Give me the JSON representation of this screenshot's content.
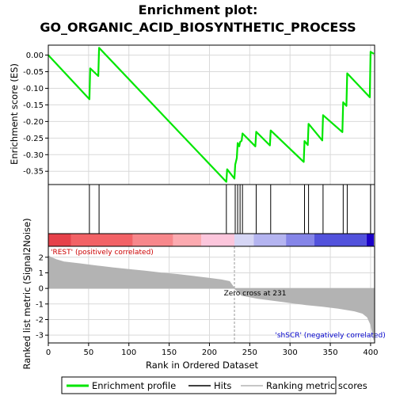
{
  "chart_data": {
    "type": "line",
    "title_line1": "Enrichment plot:",
    "title_line2": "GO_ORGANIC_ACID_BIOSYNTHETIC_PROCESS",
    "xlabel": "Rank in Ordered Dataset",
    "ylabel_top": "Enrichment score (ES)",
    "ylabel_bottom": "Ranked list metric (Signal2Noise)",
    "xlim": [
      0,
      405
    ],
    "ylim_es": [
      -0.39,
      0.03
    ],
    "ylim_metric": [
      -3.5,
      2.7
    ],
    "x_ticks": [
      0,
      50,
      100,
      150,
      200,
      250,
      300,
      350,
      400
    ],
    "es_ticks": [
      0.0,
      -0.05,
      -0.1,
      -0.15,
      -0.2,
      -0.25,
      -0.3,
      -0.35
    ],
    "es_tick_labels": [
      "0.00",
      "-0.05",
      "-0.10",
      "-0.15",
      "-0.20",
      "-0.25",
      "-0.30",
      "-0.35"
    ],
    "metric_ticks": [
      2,
      1,
      0,
      -1,
      -2,
      -3
    ],
    "es_profile": {
      "x": [
        0,
        51,
        52,
        62,
        63,
        221,
        222,
        231,
        232,
        234,
        235,
        237,
        238,
        240,
        241,
        257,
        258,
        275,
        276,
        317,
        318,
        322,
        323,
        340,
        341,
        365,
        366,
        370,
        371,
        399,
        400,
        404
      ],
      "y": [
        0.0,
        -0.133,
        -0.04,
        -0.063,
        0.022,
        -0.382,
        -0.344,
        -0.372,
        -0.33,
        -0.31,
        -0.265,
        -0.275,
        -0.262,
        -0.258,
        -0.236,
        -0.275,
        -0.231,
        -0.272,
        -0.227,
        -0.322,
        -0.259,
        -0.271,
        -0.207,
        -0.257,
        -0.181,
        -0.232,
        -0.142,
        -0.153,
        -0.055,
        -0.127,
        0.01,
        0.004
      ]
    },
    "hits": [
      51,
      63,
      221,
      232,
      235,
      238,
      241,
      258,
      276,
      318,
      323,
      341,
      366,
      371,
      400
    ],
    "metric_curve": {
      "x": [
        0,
        3,
        10,
        20,
        40,
        60,
        80,
        100,
        120,
        140,
        160,
        180,
        200,
        215,
        225,
        231,
        240,
        260,
        280,
        300,
        320,
        340,
        360,
        380,
        390,
        396,
        400,
        403,
        404
      ],
      "y": [
        2.1,
        2.0,
        1.85,
        1.7,
        1.58,
        1.45,
        1.33,
        1.22,
        1.12,
        1.0,
        0.9,
        0.78,
        0.65,
        0.55,
        0.45,
        0.0,
        -0.45,
        -0.65,
        -0.78,
        -0.92,
        -1.05,
        -1.15,
        -1.28,
        -1.45,
        -1.6,
        -1.85,
        -2.3,
        -3.0,
        -3.3
      ]
    },
    "zero_cross_rank": 231,
    "zero_cross_label": "Zero cross at 231",
    "pos_label": "'REST' (positively correlated)",
    "neg_label": "'shSCR' (negatively correlated)",
    "colorbar": [
      {
        "x0": 0,
        "x1": 28,
        "color": "#e6414a"
      },
      {
        "x0": 28,
        "x1": 105,
        "color": "#f26266"
      },
      {
        "x0": 105,
        "x1": 155,
        "color": "#f7878b"
      },
      {
        "x0": 155,
        "x1": 190,
        "color": "#fcaab0"
      },
      {
        "x0": 190,
        "x1": 231,
        "color": "#fcc6dc"
      },
      {
        "x0": 231,
        "x1": 255,
        "color": "#d6d6f5"
      },
      {
        "x0": 255,
        "x1": 295,
        "color": "#b4b4f0"
      },
      {
        "x0": 295,
        "x1": 330,
        "color": "#8585e8"
      },
      {
        "x0": 330,
        "x1": 395,
        "color": "#5252dc"
      },
      {
        "x0": 395,
        "x1": 404,
        "color": "#1a00c8"
      }
    ],
    "legend": [
      "Enrichment profile",
      "Hits",
      "Ranking metric scores"
    ],
    "colors": {
      "profile": "#00e600",
      "hits": "#000000",
      "metric": "#b3b3b3",
      "pos_text": "#cc0000",
      "neg_text": "#0000cc",
      "grid": "#d9d9d9"
    }
  }
}
